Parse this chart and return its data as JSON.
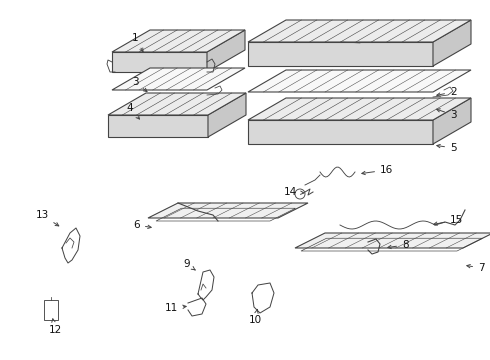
{
  "bg_color": "#ffffff",
  "line_color": "#444444",
  "label_color": "#111111",
  "font_size": 7.5,
  "lw": 0.8
}
